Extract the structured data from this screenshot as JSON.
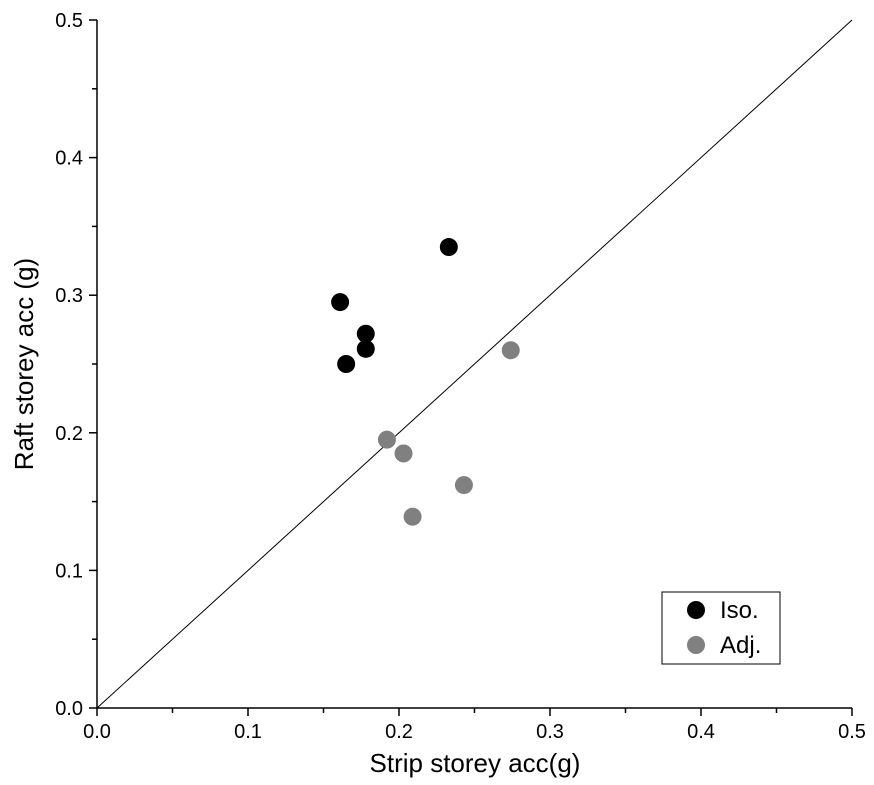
{
  "chart_data": {
    "type": "scatter",
    "xlabel": "Strip storey acc(g)",
    "ylabel": "Raft storey acc (g)",
    "xlim": [
      0,
      0.5
    ],
    "ylim": [
      0,
      0.5
    ],
    "xticks": [
      "0.0",
      "0.1",
      "0.2",
      "0.3",
      "0.4",
      "0.5"
    ],
    "yticks": [
      "0.0",
      "0.1",
      "0.2",
      "0.3",
      "0.4",
      "0.5"
    ],
    "reference_line": {
      "x": [
        0,
        0.5
      ],
      "y": [
        0,
        0.5
      ]
    },
    "legend_position": "bottom-right",
    "series": [
      {
        "name": "Iso.",
        "color": "#000000",
        "points": [
          {
            "x": 0.161,
            "y": 0.295
          },
          {
            "x": 0.178,
            "y": 0.272
          },
          {
            "x": 0.178,
            "y": 0.261
          },
          {
            "x": 0.165,
            "y": 0.25
          },
          {
            "x": 0.233,
            "y": 0.335
          }
        ]
      },
      {
        "name": "Adj.",
        "color": "#808080",
        "points": [
          {
            "x": 0.274,
            "y": 0.26
          },
          {
            "x": 0.192,
            "y": 0.195
          },
          {
            "x": 0.203,
            "y": 0.185
          },
          {
            "x": 0.243,
            "y": 0.162
          },
          {
            "x": 0.209,
            "y": 0.139
          }
        ]
      }
    ]
  }
}
